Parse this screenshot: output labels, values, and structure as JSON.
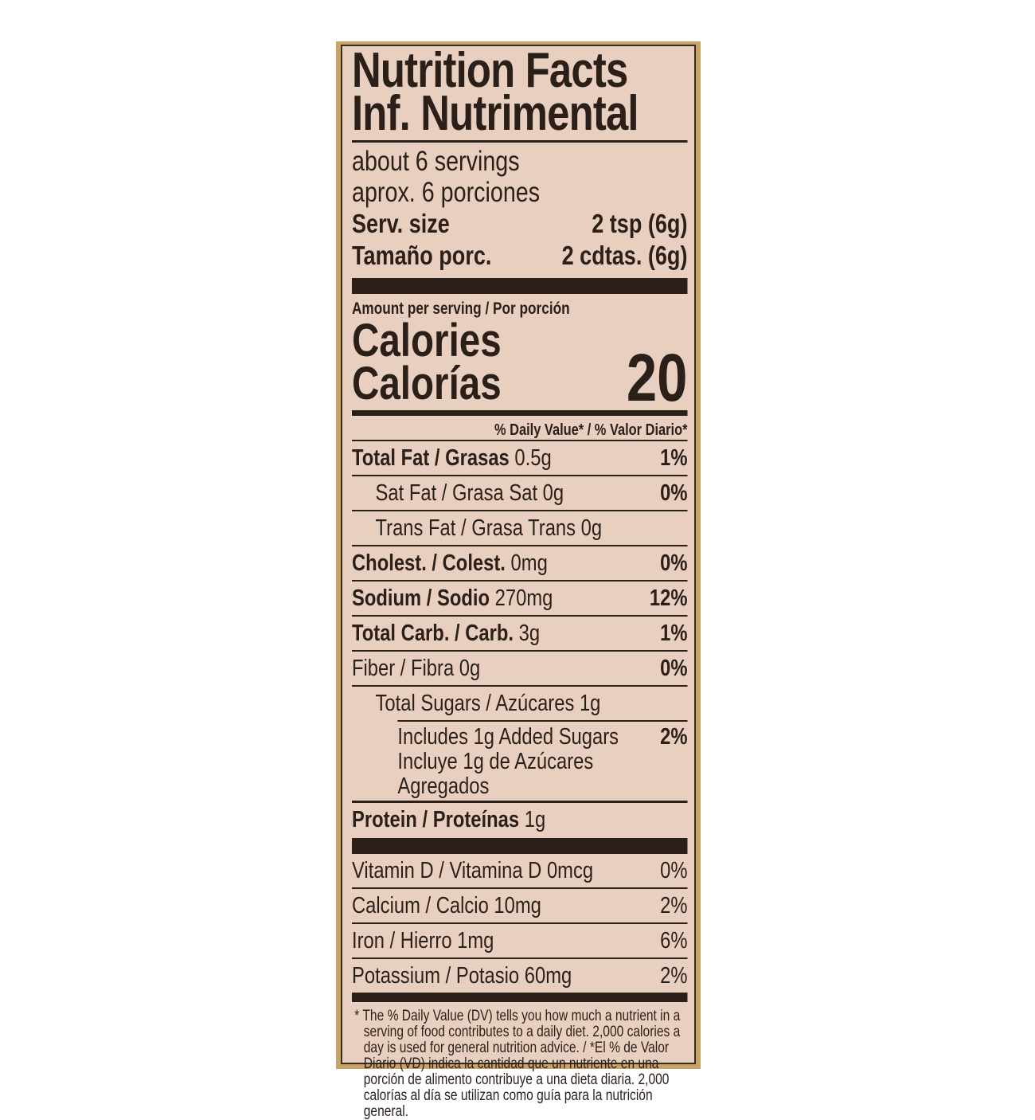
{
  "header": {
    "title_en": "Nutrition Facts",
    "title_es": "Inf. Nutrimental"
  },
  "servings": {
    "en": "about 6 servings",
    "es": "aprox. 6 porciones",
    "size_label_en": "Serv. size",
    "size_value_en": "2 tsp (6g)",
    "size_label_es": "Tamaño porc.",
    "size_value_es": "2 cdtas. (6g)"
  },
  "amount_per_serving": "Amount per serving / Por porción",
  "calories": {
    "label_en": "Calories",
    "label_es": "Calorías",
    "value": "20"
  },
  "dv_header": "% Daily Value* / % Valor Diario*",
  "nutrients": [
    {
      "label": "Total Fat / Grasas",
      "amount": "0.5g",
      "dv": "1%"
    },
    {
      "label": "Sat Fat / Grasa Sat",
      "amount": "0g",
      "dv": "0%"
    },
    {
      "label": "Trans Fat / Grasa Trans",
      "amount": "0g",
      "dv": ""
    },
    {
      "label": "Cholest. / Colest.",
      "amount": "0mg",
      "dv": "0%"
    },
    {
      "label": "Sodium / Sodio",
      "amount": "270mg",
      "dv": "12%"
    },
    {
      "label": "Total Carb. / Carb.",
      "amount": "3g",
      "dv": "1%"
    },
    {
      "label": "Fiber / Fibra",
      "amount": "0g",
      "dv": "0%"
    },
    {
      "label": "Total Sugars / Azúcares",
      "amount": "1g",
      "dv": ""
    },
    {
      "label": "Includes 1g Added Sugars",
      "label_es": "Incluye  1g de Azúcares Agregados",
      "dv": "2%"
    },
    {
      "label": "Protein / Proteínas",
      "amount": "1g",
      "dv": ""
    }
  ],
  "vitamins": [
    {
      "label": "Vitamin D / Vitamina D 0mcg",
      "dv": "0%"
    },
    {
      "label": "Calcium / Calcio 10mg",
      "dv": "2%"
    },
    {
      "label": "Iron / Hierro 1mg",
      "dv": "6%"
    },
    {
      "label": "Potassium / Potasio 60mg",
      "dv": "2%"
    }
  ],
  "footnote": "* The % Daily Value (DV) tells you how much a nutrient in a serving of food contributes to a daily diet. 2,000 calories a day is used for general nutrition advice. / *El % de Valor Diario (VD) indica la cantidad que un nutriente en una porción de alimento contribuye a una dieta diaria. 2,000 calorías al día se utilizan como guía para la nutrición general.",
  "colors": {
    "ink": "#2b1f1a",
    "label_bg": "#e9cfbf",
    "package": "#c7a468"
  }
}
